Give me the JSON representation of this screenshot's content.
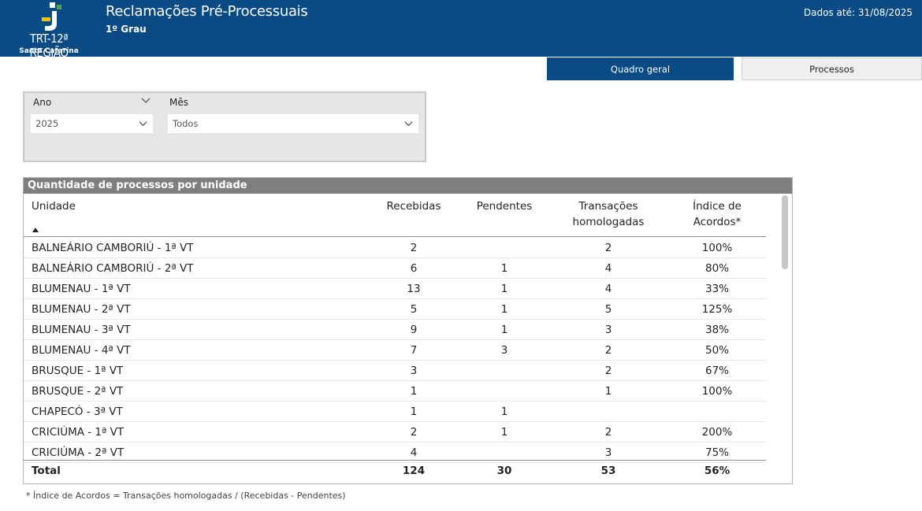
{
  "header": {
    "logo_name": "TRT-12ª REGIÃO",
    "logo_sub": "Santa Catarina",
    "title": "Reclamações Pré-Processuais",
    "subtitle": "1º Grau",
    "data_date": "Dados até: 31/08/2025",
    "colors": {
      "primary": "#0a4a85",
      "logo_green": "#4fa34a",
      "logo_yellow": "#f2c300"
    }
  },
  "tabs": [
    {
      "label": "Quadro geral",
      "active": true
    },
    {
      "label": "Processos",
      "active": false
    }
  ],
  "filters": {
    "ano": {
      "label": "Ano",
      "value": "2025"
    },
    "mes": {
      "label": "Mês",
      "value": "Todos"
    }
  },
  "table": {
    "title": "Quantidade de processos por unidade",
    "headers": {
      "unidade": "Unidade",
      "recebidas": "Recebidas",
      "pendentes": "Pendentes",
      "transacoes_1": "Transações",
      "transacoes_2": "homologadas",
      "indice_1": "Índice de",
      "indice_2": "Acordos*"
    },
    "rows": [
      {
        "unidade": "BALNEÁRIO CAMBORIÚ - 1ª VT",
        "recebidas": "2",
        "pendentes": "",
        "transacoes": "2",
        "indice": "100%"
      },
      {
        "unidade": "BALNEÁRIO CAMBORIÚ - 2ª VT",
        "recebidas": "6",
        "pendentes": "1",
        "transacoes": "4",
        "indice": "80%"
      },
      {
        "unidade": "BLUMENAU - 1ª VT",
        "recebidas": "13",
        "pendentes": "1",
        "transacoes": "4",
        "indice": "33%"
      },
      {
        "unidade": "BLUMENAU - 2ª VT",
        "recebidas": "5",
        "pendentes": "1",
        "transacoes": "5",
        "indice": "125%"
      },
      {
        "unidade": "BLUMENAU - 3ª VT",
        "recebidas": "9",
        "pendentes": "1",
        "transacoes": "3",
        "indice": "38%"
      },
      {
        "unidade": "BLUMENAU - 4ª VT",
        "recebidas": "7",
        "pendentes": "3",
        "transacoes": "2",
        "indice": "50%"
      },
      {
        "unidade": "BRUSQUE - 1ª VT",
        "recebidas": "3",
        "pendentes": "",
        "transacoes": "2",
        "indice": "67%"
      },
      {
        "unidade": "BRUSQUE - 2ª VT",
        "recebidas": "1",
        "pendentes": "",
        "transacoes": "1",
        "indice": "100%"
      },
      {
        "unidade": "CHAPECÓ - 3ª VT",
        "recebidas": "1",
        "pendentes": "1",
        "transacoes": "",
        "indice": ""
      },
      {
        "unidade": "CRICIÚMA - 1ª VT",
        "recebidas": "2",
        "pendentes": "1",
        "transacoes": "2",
        "indice": "200%"
      },
      {
        "unidade": "CRICIÚMA - 2ª VT",
        "recebidas": "4",
        "pendentes": "",
        "transacoes": "3",
        "indice": "75%"
      }
    ],
    "total": {
      "label": "Total",
      "recebidas": "124",
      "pendentes": "30",
      "transacoes": "53",
      "indice": "56%"
    }
  },
  "footnote": "* Índice de Acordos = Transações homologadas / (Recebidas - Pendentes)"
}
